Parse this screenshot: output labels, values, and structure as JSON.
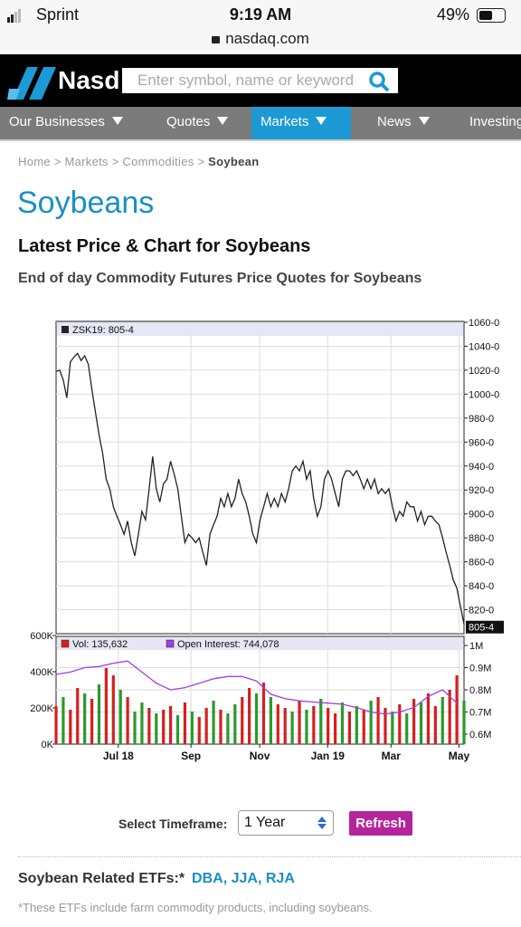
{
  "status_bar": {
    "carrier": "Sprint",
    "time": "9:19 AM",
    "battery": "49%",
    "url": "nasdaq.com"
  },
  "header": {
    "logo": "Nasd",
    "search_placeholder": "Enter symbol, name or keyword"
  },
  "nav": {
    "items": [
      "Our Businesses",
      "Quotes",
      "Markets",
      "News",
      "Investing"
    ],
    "active": 2
  },
  "breadcrumbs": [
    "Home",
    "Markets",
    "Commodities",
    "Soybean"
  ],
  "title": "Soybeans",
  "heading": "Latest Price & Chart for Soybeans",
  "subheading": "End of day Commodity Futures Price Quotes for Soybeans",
  "chart_data": [
    {
      "type": "line",
      "grid": true,
      "series": [
        {
          "name": "ZSK19: 805-4",
          "color": "#222222",
          "x": [
            0,
            1,
            2,
            3,
            4,
            5,
            6,
            7,
            8,
            9,
            10,
            11,
            12,
            13,
            14,
            15,
            16,
            17,
            18,
            19,
            20,
            21,
            22,
            23,
            24,
            25,
            26,
            27,
            28,
            29,
            30,
            31,
            32,
            33,
            34,
            35,
            36,
            37,
            38,
            39,
            40,
            41,
            42,
            43,
            44,
            45,
            46,
            47,
            48,
            49,
            50,
            51,
            52,
            53,
            54,
            55,
            56,
            57,
            58,
            59,
            60,
            61,
            62,
            63,
            64,
            65,
            66,
            67,
            68,
            69,
            70,
            71,
            72,
            73,
            74,
            75,
            76,
            77,
            78,
            79,
            80,
            81,
            82,
            83,
            84,
            85,
            86,
            87,
            88,
            89,
            90,
            91,
            92,
            93,
            94,
            95,
            96,
            97,
            98,
            99,
            100,
            101,
            102,
            103,
            104,
            105,
            106,
            107,
            108,
            109,
            110,
            111,
            112,
            113,
            114
          ],
          "values": [
            1019,
            1020,
            1012,
            997,
            1027,
            1031,
            1034,
            1028,
            1032,
            1025,
            1004,
            985,
            966,
            951,
            929,
            921,
            906,
            898,
            891,
            883,
            894,
            876,
            865,
            883,
            902,
            895,
            921,
            948,
            921,
            910,
            925,
            929,
            944,
            933,
            921,
            898,
            876,
            883,
            880,
            876,
            880,
            868,
            857,
            883,
            891,
            898,
            913,
            906,
            917,
            906,
            913,
            929,
            917,
            910,
            898,
            883,
            876,
            895,
            906,
            917,
            906,
            913,
            906,
            917,
            910,
            921,
            936,
            940,
            936,
            944,
            929,
            936,
            913,
            898,
            906,
            929,
            936,
            929,
            917,
            906,
            929,
            936,
            936,
            932,
            936,
            929,
            921,
            929,
            921,
            929,
            917,
            921,
            917,
            921,
            906,
            894,
            902,
            898,
            910,
            906,
            906,
            894,
            902,
            891,
            898,
            898,
            894,
            891,
            880,
            868,
            857,
            845,
            838,
            823,
            808
          ]
        }
      ],
      "last_price": {
        "value": 805.5,
        "label": "805-4"
      },
      "xlim": [
        0,
        114
      ],
      "xticks": [
        {
          "value": 17.4,
          "label": "Jul 18"
        },
        {
          "value": 37.7,
          "label": "Sep"
        },
        {
          "value": 56.9,
          "label": "Nov"
        },
        {
          "value": 75.9,
          "label": "Jan 19"
        },
        {
          "value": 93.6,
          "label": "Mar"
        },
        {
          "value": 112.6,
          "label": "May"
        }
      ],
      "ylim": [
        800,
        1060
      ],
      "yticks": [
        {
          "value": 820,
          "label": "820-0"
        },
        {
          "value": 840,
          "label": "840-0"
        },
        {
          "value": 860,
          "label": "860-0"
        },
        {
          "value": 880,
          "label": "880-0"
        },
        {
          "value": 900,
          "label": "900-0"
        },
        {
          "value": 920,
          "label": "920-0"
        },
        {
          "value": 940,
          "label": "940-0"
        },
        {
          "value": 960,
          "label": "960-0"
        },
        {
          "value": 980,
          "label": "980-0"
        },
        {
          "value": 1000,
          "label": "1000-0"
        },
        {
          "value": 1020,
          "label": "1020-0"
        },
        {
          "value": 1040,
          "label": "1040-0"
        },
        {
          "value": 1060,
          "label": "1060-0"
        }
      ]
    },
    {
      "type": "bar",
      "grid": true,
      "series": [
        {
          "name": "Vol: 135,632",
          "color": "#d42020",
          "x": [
            0,
            2,
            4,
            6,
            8,
            10,
            12,
            14,
            16,
            18,
            20,
            22,
            24,
            26,
            28,
            30,
            32,
            34,
            36,
            38,
            40,
            42,
            44,
            46,
            48,
            50,
            52,
            54,
            56,
            58,
            60,
            62,
            64,
            66,
            68,
            70,
            72,
            74,
            76,
            78,
            80,
            82,
            84,
            86,
            88,
            90,
            92,
            94,
            96,
            98,
            100,
            102,
            104,
            106,
            108,
            110,
            112,
            114
          ],
          "values": [
            210000,
            260000,
            190000,
            310000,
            280000,
            250000,
            330000,
            420000,
            380000,
            300000,
            260000,
            180000,
            230000,
            200000,
            170000,
            190000,
            210000,
            160000,
            230000,
            180000,
            150000,
            200000,
            240000,
            190000,
            170000,
            220000,
            260000,
            310000,
            280000,
            340000,
            260000,
            220000,
            200000,
            180000,
            240000,
            190000,
            210000,
            250000,
            200000,
            170000,
            230000,
            180000,
            210000,
            190000,
            240000,
            260000,
            200000,
            180000,
            220000,
            170000,
            250000,
            230000,
            280000,
            210000,
            260000,
            300000,
            380000,
            240000
          ],
          "colors": [
            "#d42020",
            "#2a9a2a",
            "#d42020",
            "#d42020",
            "#2a9a2a",
            "#d42020",
            "#2a9a2a",
            "#d42020",
            "#d42020",
            "#2a9a2a",
            "#d42020",
            "#2a9a2a",
            "#2a9a2a",
            "#d42020",
            "#2a9a2a",
            "#d42020",
            "#d42020",
            "#2a9a2a",
            "#d42020",
            "#2a9a2a",
            "#d42020",
            "#d42020",
            "#2a9a2a",
            "#d42020",
            "#2a9a2a",
            "#2a9a2a",
            "#d42020",
            "#d42020",
            "#2a9a2a",
            "#d42020",
            "#2a9a2a",
            "#d42020",
            "#d42020",
            "#2a9a2a",
            "#d42020",
            "#2a9a2a",
            "#d42020",
            "#2a9a2a",
            "#d42020",
            "#d42020",
            "#2a9a2a",
            "#d42020",
            "#2a9a2a",
            "#d42020",
            "#2a9a2a",
            "#d42020",
            "#d42020",
            "#2a9a2a",
            "#d42020",
            "#2a9a2a",
            "#d42020",
            "#2a9a2a",
            "#d42020",
            "#d42020",
            "#2a9a2a",
            "#d42020",
            "#d42020",
            "#2a9a2a"
          ]
        },
        {
          "name": "Open Interest: 744,078",
          "type": "line",
          "color": "#a040e0",
          "axis": "y2",
          "x": [
            0,
            4,
            8,
            12,
            16,
            20,
            24,
            28,
            32,
            36,
            40,
            44,
            48,
            52,
            56,
            60,
            64,
            68,
            72,
            76,
            80,
            84,
            88,
            92,
            96,
            100,
            104,
            108,
            112
          ],
          "values": [
            870000,
            880000,
            900000,
            905000,
            920000,
            930000,
            880000,
            830000,
            800000,
            810000,
            830000,
            850000,
            860000,
            860000,
            840000,
            780000,
            760000,
            750000,
            745000,
            740000,
            735000,
            720000,
            700000,
            690000,
            700000,
            720000,
            770000,
            800000,
            740000
          ]
        }
      ],
      "xlim": [
        0,
        114
      ],
      "ylim": [
        0,
        600000
      ],
      "yticks": [
        {
          "value": 0,
          "label": "0K"
        },
        {
          "value": 200000,
          "label": "200K"
        },
        {
          "value": 400000,
          "label": "400K"
        },
        {
          "value": 600000,
          "label": "600K"
        }
      ],
      "y2lim": [
        555000,
        1045000
      ],
      "y2ticks": [
        {
          "value": 600000,
          "label": "0.6M"
        },
        {
          "value": 700000,
          "label": "0.7M"
        },
        {
          "value": 800000,
          "label": "0.8M"
        },
        {
          "value": 900000,
          "label": "0.9M"
        },
        {
          "value": 1000000,
          "label": "1M"
        }
      ]
    }
  ],
  "timeframe": {
    "label": "Select Timeframe:",
    "selected": "1 Year",
    "button": "Refresh"
  },
  "etfs": {
    "label": "Soybean Related ETFs:*",
    "links": [
      "DBA",
      "JJA",
      "RJA"
    ],
    "note": "*These ETFs include farm commodity products, including soybeans."
  }
}
